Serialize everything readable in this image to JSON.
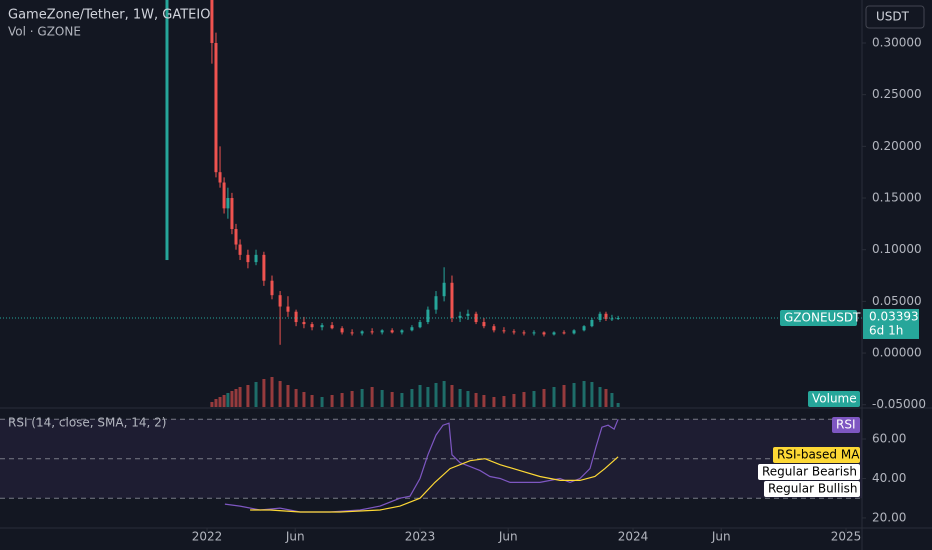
{
  "chart_data": [
    {
      "type": "candlestick",
      "title": "GameZone/Tether, 1W, GATEIO",
      "subtitle": "Vol · GZONE",
      "currency_label": "USDT",
      "symbol_label": "GZONEUSDT",
      "last_price": 0.03393,
      "countdown": "6d 1h",
      "volume_label": "Volume",
      "up_color": "#26a69a",
      "down_color": "#ef5350",
      "xlim": [
        2021.028,
        2025.075
      ],
      "ylim": [
        -0.0522,
        0.3416
      ],
      "yticks": [
        {
          "value": 0.3,
          "label": "0.30000"
        },
        {
          "value": 0.25,
          "label": "0.25000"
        },
        {
          "value": 0.2,
          "label": "0.20000"
        },
        {
          "value": 0.15,
          "label": "0.15000"
        },
        {
          "value": 0.1,
          "label": "0.10000"
        },
        {
          "value": 0.05,
          "label": "0.05000"
        },
        {
          "value": 0,
          "label": "0.00000"
        },
        {
          "value": -0.05,
          "label": "-0.05000"
        }
      ],
      "x": [
        2021.812,
        2022.023,
        2022.042,
        2022.061,
        2022.08,
        2022.098,
        2022.117,
        2022.136,
        2022.155,
        2022.192,
        2022.23,
        2022.267,
        2022.305,
        2022.343,
        2022.38,
        2022.418,
        2022.455,
        2022.493,
        2022.54,
        2022.587,
        2022.634,
        2022.681,
        2022.728,
        2022.775,
        2022.822,
        2022.869,
        2022.915,
        2022.962,
        2023.0,
        2023.037,
        2023.075,
        2023.113,
        2023.15,
        2023.188,
        2023.225,
        2023.263,
        2023.3,
        2023.347,
        2023.394,
        2023.441,
        2023.488,
        2023.535,
        2023.582,
        2023.629,
        2023.676,
        2023.723,
        2023.77,
        2023.807,
        2023.845,
        2023.873,
        2023.901,
        2023.93
      ],
      "open": [
        0.09,
        0.342,
        0.3,
        0.175,
        0.165,
        0.14,
        0.15,
        0.12,
        0.105,
        0.095,
        0.088,
        0.095,
        0.07,
        0.056,
        0.045,
        0.04,
        0.03,
        0.028,
        0.025,
        0.027,
        0.024,
        0.02,
        0.019,
        0.021,
        0.02,
        0.022,
        0.02,
        0.022,
        0.025,
        0.03,
        0.042,
        0.055,
        0.068,
        0.034,
        0.036,
        0.038,
        0.03,
        0.026,
        0.022,
        0.021,
        0.02,
        0.019,
        0.02,
        0.018,
        0.02,
        0.019,
        0.022,
        0.026,
        0.032,
        0.038,
        0.033,
        0.0335
      ],
      "high": [
        0.342,
        0.342,
        0.31,
        0.2,
        0.17,
        0.16,
        0.155,
        0.125,
        0.11,
        0.1,
        0.1,
        0.098,
        0.075,
        0.06,
        0.055,
        0.042,
        0.035,
        0.03,
        0.029,
        0.03,
        0.026,
        0.023,
        0.022,
        0.024,
        0.023,
        0.024,
        0.023,
        0.027,
        0.032,
        0.045,
        0.06,
        0.083,
        0.075,
        0.04,
        0.042,
        0.04,
        0.034,
        0.028,
        0.025,
        0.023,
        0.022,
        0.022,
        0.021,
        0.021,
        0.022,
        0.023,
        0.027,
        0.034,
        0.04,
        0.04,
        0.037,
        0.036
      ],
      "low": [
        0.09,
        0.28,
        0.17,
        0.16,
        0.135,
        0.13,
        0.115,
        0.1,
        0.09,
        0.082,
        0.085,
        0.065,
        0.052,
        0.008,
        0.035,
        0.026,
        0.024,
        0.022,
        0.022,
        0.023,
        0.018,
        0.017,
        0.017,
        0.018,
        0.018,
        0.019,
        0.018,
        0.021,
        0.024,
        0.028,
        0.038,
        0.05,
        0.03,
        0.03,
        0.032,
        0.028,
        0.024,
        0.02,
        0.019,
        0.018,
        0.017,
        0.017,
        0.016,
        0.017,
        0.018,
        0.018,
        0.021,
        0.025,
        0.03,
        0.031,
        0.031,
        0.032
      ],
      "close": [
        0.342,
        0.3,
        0.175,
        0.165,
        0.14,
        0.15,
        0.12,
        0.105,
        0.095,
        0.088,
        0.095,
        0.07,
        0.056,
        0.045,
        0.04,
        0.03,
        0.028,
        0.025,
        0.027,
        0.024,
        0.02,
        0.019,
        0.021,
        0.02,
        0.022,
        0.02,
        0.022,
        0.025,
        0.03,
        0.042,
        0.055,
        0.068,
        0.034,
        0.036,
        0.038,
        0.03,
        0.026,
        0.022,
        0.021,
        0.02,
        0.019,
        0.02,
        0.018,
        0.02,
        0.019,
        0.022,
        0.026,
        0.032,
        0.038,
        0.033,
        0.0335,
        0.03393
      ],
      "volume": [
        0,
        5,
        8,
        10,
        12,
        14,
        16,
        18,
        20,
        22,
        25,
        28,
        30,
        26,
        22,
        18,
        15,
        12,
        10,
        12,
        14,
        16,
        18,
        20,
        17,
        15,
        14,
        18,
        22,
        20,
        24,
        26,
        22,
        18,
        16,
        14,
        12,
        10,
        11,
        13,
        15,
        16,
        18,
        20,
        22,
        24,
        26,
        25,
        20,
        18,
        14,
        4
      ]
    },
    {
      "type": "line",
      "title": "RSI (14, close, SMA, 14, 2)",
      "xlim": [
        2021.028,
        2025.075
      ],
      "ylim": [
        14.9,
        74.7
      ],
      "levels": [
        70,
        50,
        30
      ],
      "band_color": "#7e57c2",
      "yticks": [
        {
          "value": 60,
          "label": "60.00"
        },
        {
          "value": 40,
          "label": "40.00"
        },
        {
          "value": 20,
          "label": "20.00"
        }
      ],
      "xticks": [
        2022,
        {
          "value": 2022.414,
          "label": "Jun"
        },
        2023,
        {
          "value": 2023.414,
          "label": "Jun"
        },
        2024,
        {
          "value": 2024.414,
          "label": "Jun"
        },
        2025
      ],
      "series": [
        {
          "name": "RSI",
          "color": "#7e57c2",
          "x": [
            2022.084,
            2022.155,
            2022.249,
            2022.343,
            2022.437,
            2022.577,
            2022.718,
            2022.812,
            2022.906,
            2022.953,
            2023.0,
            2023.037,
            2023.075,
            2023.108,
            2023.136,
            2023.15,
            2023.188,
            2023.235,
            2023.282,
            2023.328,
            2023.376,
            2023.423,
            2023.469,
            2023.563,
            2023.657,
            2023.704,
            2023.751,
            2023.798,
            2023.826,
            2023.854,
            2023.883,
            2023.911,
            2023.93
          ],
          "values": [
            27,
            26,
            24,
            25,
            23,
            23,
            24,
            26,
            30,
            31,
            40,
            52,
            62,
            67,
            68,
            52,
            48,
            46,
            44,
            41,
            40,
            38,
            38,
            38,
            40,
            38,
            40,
            45,
            56,
            66,
            67,
            65,
            70
          ]
        },
        {
          "name": "RSI-based MA",
          "color": "#fdd835",
          "x": [
            2022.202,
            2022.296,
            2022.437,
            2022.624,
            2022.812,
            2022.906,
            2023.0,
            2023.07,
            2023.141,
            2023.235,
            2023.305,
            2023.376,
            2023.469,
            2023.563,
            2023.657,
            2023.751,
            2023.821,
            2023.868,
            2023.93
          ],
          "values": [
            24,
            24,
            23,
            23,
            24,
            26,
            30,
            38,
            45,
            49,
            50,
            47,
            44,
            41,
            39,
            39,
            41,
            45,
            51
          ]
        }
      ],
      "extra_legend": [
        "Regular Bearish",
        "Regular Bullish"
      ]
    }
  ]
}
